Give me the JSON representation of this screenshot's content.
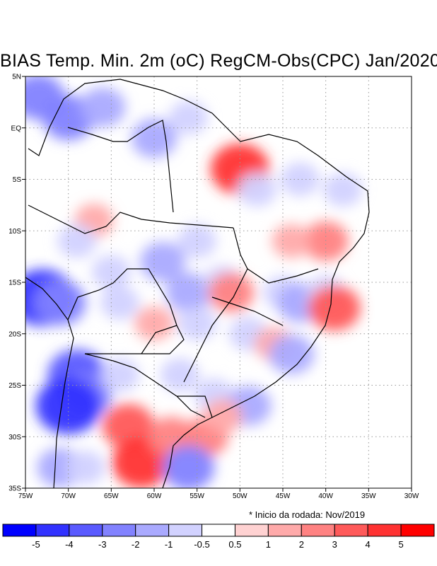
{
  "title": "BIAS Temp. Min. 2m (oC) RegCM-Obs(CPC) Jan/2020",
  "note": "* Inicio da rodada: Nov/2019",
  "map": {
    "lon_range": [
      -75,
      -30
    ],
    "lat_range": [
      -35,
      5
    ],
    "x_ticks": [
      {
        "lon": -75,
        "label": "75W"
      },
      {
        "lon": -70,
        "label": "70W"
      },
      {
        "lon": -65,
        "label": "65W"
      },
      {
        "lon": -60,
        "label": "60W"
      },
      {
        "lon": -55,
        "label": "55W"
      },
      {
        "lon": -50,
        "label": "50W"
      },
      {
        "lon": -45,
        "label": "45W"
      },
      {
        "lon": -40,
        "label": "40W"
      },
      {
        "lon": -35,
        "label": "35W"
      },
      {
        "lon": -30,
        "label": "30W"
      }
    ],
    "y_ticks": [
      {
        "lat": 5,
        "label": "5N"
      },
      {
        "lat": 0,
        "label": "EQ"
      },
      {
        "lat": -5,
        "label": "5S"
      },
      {
        "lat": -10,
        "label": "10S"
      },
      {
        "lat": -15,
        "label": "15S"
      },
      {
        "lat": -20,
        "label": "20S"
      },
      {
        "lat": -25,
        "label": "25S"
      },
      {
        "lat": -30,
        "label": "30S"
      },
      {
        "lat": -35,
        "label": "35S"
      }
    ],
    "grid": true,
    "colorbar": {
      "colors": [
        "#0000ff",
        "#3232ff",
        "#5a5aff",
        "#8282ff",
        "#aaaaff",
        "#d2d2ff",
        "#ffffff",
        "#ffd2d2",
        "#ffaaaa",
        "#ff8282",
        "#ff5a5a",
        "#ff3232",
        "#ff0000"
      ],
      "labels": [
        "-5",
        "-4",
        "-3",
        "-2",
        "-1",
        "-0.5",
        "0.5",
        "1",
        "2",
        "3",
        "4",
        "5"
      ]
    },
    "anomalies": [
      {
        "lon": -70,
        "lat": 1,
        "value": -3
      },
      {
        "lon": -73.5,
        "lat": 3,
        "value": -3
      },
      {
        "lon": -60,
        "lat": -1,
        "value": -2
      },
      {
        "lon": -66,
        "lat": 2,
        "value": -2
      },
      {
        "lon": -56,
        "lat": 1,
        "value": -1
      },
      {
        "lon": -50,
        "lat": -4,
        "value": 4
      },
      {
        "lon": -48,
        "lat": -6,
        "value": -1
      },
      {
        "lon": -43,
        "lat": -5,
        "value": -1
      },
      {
        "lon": -38,
        "lat": -6,
        "value": -1
      },
      {
        "lon": -40,
        "lat": -11,
        "value": 2
      },
      {
        "lon": -44,
        "lat": -11,
        "value": 1
      },
      {
        "lon": -67,
        "lat": -9,
        "value": 1
      },
      {
        "lon": -55,
        "lat": -11,
        "value": -1
      },
      {
        "lon": -59,
        "lat": -13,
        "value": -2
      },
      {
        "lon": -69,
        "lat": -11,
        "value": -1
      },
      {
        "lon": -56,
        "lat": -16,
        "value": -2
      },
      {
        "lon": -52,
        "lat": -15,
        "value": -1
      },
      {
        "lon": -51,
        "lat": -16,
        "value": 2
      },
      {
        "lon": -45,
        "lat": -16,
        "value": -1
      },
      {
        "lon": -43,
        "lat": -17,
        "value": -2
      },
      {
        "lon": -40,
        "lat": -16,
        "value": -1
      },
      {
        "lon": -39,
        "lat": -17.5,
        "value": 3
      },
      {
        "lon": -65,
        "lat": -14,
        "value": -1
      },
      {
        "lon": -73,
        "lat": -16.5,
        "value": -5
      },
      {
        "lon": -71,
        "lat": -17,
        "value": -3
      },
      {
        "lon": -64,
        "lat": -17,
        "value": -1
      },
      {
        "lon": -55,
        "lat": -19,
        "value": -1
      },
      {
        "lon": -60,
        "lat": -19,
        "value": 1
      },
      {
        "lon": -49,
        "lat": -20,
        "value": -1
      },
      {
        "lon": -46,
        "lat": -21,
        "value": 1
      },
      {
        "lon": -44,
        "lat": -22,
        "value": -2
      },
      {
        "lon": -69,
        "lat": -24,
        "value": -4
      },
      {
        "lon": -68,
        "lat": -26,
        "value": -3
      },
      {
        "lon": -70,
        "lat": -27,
        "value": -5
      },
      {
        "lon": -64,
        "lat": -24,
        "value": -1
      },
      {
        "lon": -57,
        "lat": -24,
        "value": -1
      },
      {
        "lon": -53,
        "lat": -26,
        "value": -1
      },
      {
        "lon": -49,
        "lat": -27,
        "value": -2
      },
      {
        "lon": -63,
        "lat": -29,
        "value": 3
      },
      {
        "lon": -61.5,
        "lat": -32.5,
        "value": 4
      },
      {
        "lon": -58,
        "lat": -30,
        "value": 2
      },
      {
        "lon": -54,
        "lat": -30,
        "value": 2
      },
      {
        "lon": -56,
        "lat": -33,
        "value": -3
      },
      {
        "lon": -71,
        "lat": -33,
        "value": -2
      },
      {
        "lon": -68,
        "lat": -33,
        "value": -1
      },
      {
        "lon": -52,
        "lat": -28,
        "value": 1
      }
    ]
  }
}
